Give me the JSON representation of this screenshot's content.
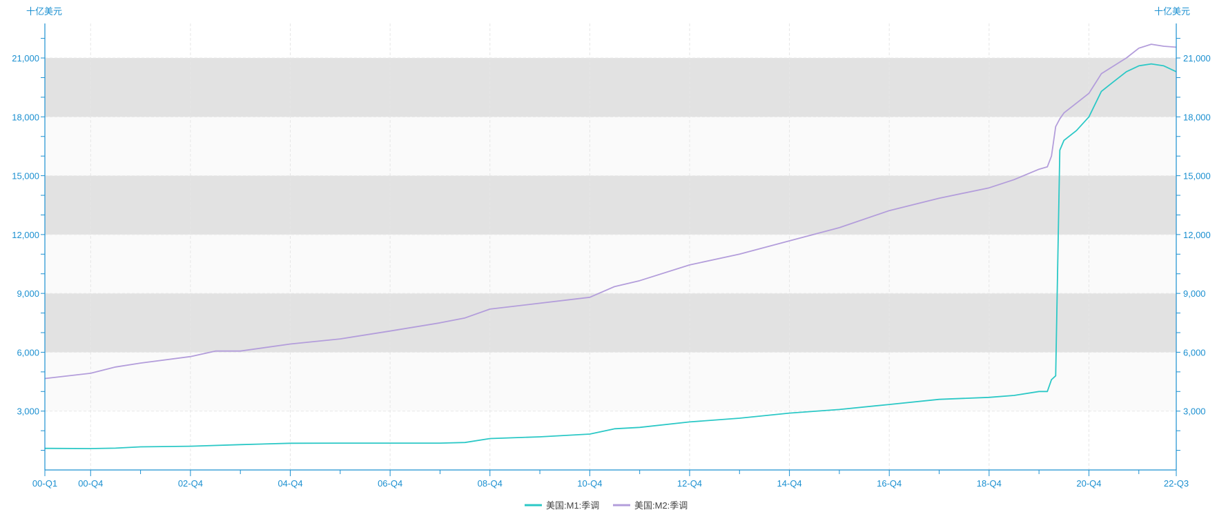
{
  "chart_data": {
    "type": "line",
    "left_unit_label": "十亿美元",
    "right_unit_label": "十亿美元",
    "ylim": [
      0,
      22760
    ],
    "y_ticks": [
      3000,
      6000,
      9000,
      12000,
      15000,
      18000,
      21000
    ],
    "y_tick_labels": [
      "3,000",
      "6,000",
      "9,000",
      "12,000",
      "15,000",
      "18,000",
      "21,000"
    ],
    "x_range": [
      "2000-01",
      "2022-09"
    ],
    "x_ticks": [
      "2000-01",
      "2000-12",
      "2002-12",
      "2004-12",
      "2006-12",
      "2008-12",
      "2010-12",
      "2012-12",
      "2014-12",
      "2016-12",
      "2018-12",
      "2020-12",
      "2022-09"
    ],
    "x_tick_labels": [
      "00-Q1",
      "00-Q4",
      "02-Q4",
      "04-Q4",
      "06-Q4",
      "08-Q4",
      "10-Q4",
      "12-Q4",
      "14-Q4",
      "16-Q4",
      "18-Q4",
      "20-Q4",
      "22-Q3"
    ],
    "grid": true,
    "bands": "alternating gray horizontal bands every 3,000",
    "legend_position": "bottom",
    "colors": {
      "axis": "#1a8fd0",
      "band_dark": "#e2e2e2",
      "band_light": "#fafafa"
    },
    "series": [
      {
        "name": "美国:M1:季调",
        "color": "#2bc8c6",
        "x": [
          "2000-01",
          "2000-12",
          "2001-06",
          "2001-12",
          "2002-12",
          "2003-12",
          "2004-12",
          "2005-12",
          "2006-12",
          "2007-12",
          "2008-06",
          "2008-12",
          "2009-12",
          "2010-12",
          "2011-06",
          "2011-12",
          "2012-12",
          "2013-12",
          "2014-12",
          "2015-12",
          "2016-12",
          "2017-12",
          "2018-12",
          "2019-06",
          "2019-12",
          "2020-02",
          "2020-03",
          "2020-04",
          "2020-05",
          "2020-06",
          "2020-09",
          "2020-12",
          "2021-03",
          "2021-06",
          "2021-09",
          "2021-12",
          "2022-03",
          "2022-06",
          "2022-09"
        ],
        "values": [
          1100,
          1090,
          1110,
          1180,
          1210,
          1290,
          1360,
          1370,
          1370,
          1370,
          1400,
          1600,
          1690,
          1830,
          2100,
          2170,
          2450,
          2640,
          2900,
          3080,
          3340,
          3600,
          3700,
          3800,
          4000,
          4000,
          4600,
          4800,
          16300,
          16800,
          17300,
          18000,
          19300,
          19800,
          20300,
          20600,
          20700,
          20600,
          20300
        ]
      },
      {
        "name": "美国:M2:季调",
        "color": "#b39ddb",
        "x": [
          "2000-01",
          "2000-12",
          "2001-06",
          "2001-12",
          "2002-12",
          "2003-06",
          "2003-12",
          "2004-12",
          "2005-12",
          "2006-12",
          "2007-12",
          "2008-06",
          "2008-12",
          "2009-12",
          "2010-12",
          "2011-06",
          "2011-12",
          "2012-12",
          "2013-12",
          "2014-12",
          "2015-12",
          "2016-12",
          "2017-12",
          "2018-12",
          "2019-06",
          "2019-12",
          "2020-02",
          "2020-03",
          "2020-04",
          "2020-05",
          "2020-06",
          "2020-09",
          "2020-12",
          "2021-03",
          "2021-06",
          "2021-09",
          "2021-12",
          "2022-03",
          "2022-06",
          "2022-09"
        ],
        "values": [
          4660,
          4930,
          5250,
          5450,
          5780,
          6060,
          6060,
          6420,
          6680,
          7080,
          7500,
          7750,
          8200,
          8500,
          8800,
          9350,
          9650,
          10450,
          11000,
          11680,
          12350,
          13220,
          13850,
          14380,
          14800,
          15330,
          15450,
          16000,
          17500,
          17900,
          18200,
          18700,
          19200,
          20200,
          20600,
          21000,
          21500,
          21700,
          21600,
          21550
        ]
      }
    ]
  }
}
